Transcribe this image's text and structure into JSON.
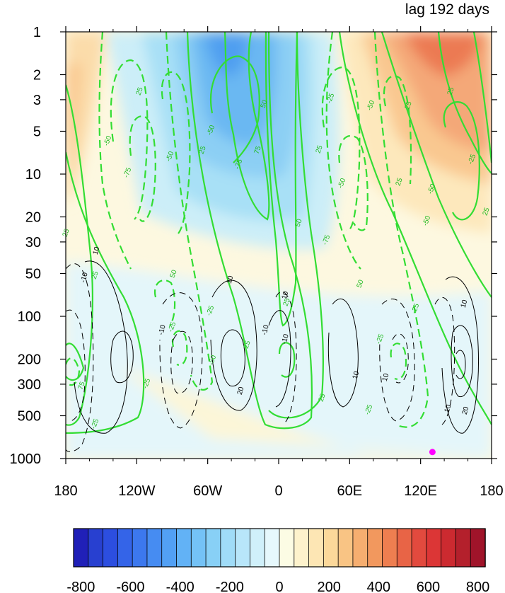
{
  "chart_data": {
    "type": "heatmap",
    "title": "lag 192 days",
    "x_tick_labels": [
      "180",
      "120W",
      "60W",
      "0",
      "60E",
      "120E",
      "180"
    ],
    "x_tick_values": [
      -180,
      -120,
      -60,
      0,
      60,
      120,
      180
    ],
    "xlim": [
      -180,
      180
    ],
    "y_tick_labels": [
      "1",
      "2",
      "3",
      "5",
      "10",
      "20",
      "30",
      "50",
      "100",
      "200",
      "300",
      "500",
      "1000"
    ],
    "y_tick_values": [
      1,
      2,
      3,
      5,
      10,
      20,
      30,
      50,
      100,
      200,
      300,
      500,
      1000
    ],
    "ylim": [
      1,
      1000
    ],
    "y_scale": "log",
    "y_reversed": true,
    "colorbar": {
      "placement": "bottom",
      "tick_labels": [
        "-800",
        "-600",
        "-400",
        "-200",
        "0",
        "200",
        "400",
        "600",
        "800"
      ],
      "tick_values": [
        -800,
        -600,
        -400,
        -200,
        0,
        200,
        400,
        600,
        800
      ],
      "levels_count": 28,
      "colors": [
        "#2020b8",
        "#2840d0",
        "#2c4ee0",
        "#3464e8",
        "#3c78ee",
        "#468cf2",
        "#52a0f4",
        "#62b2f6",
        "#74c2f6",
        "#88d0f6",
        "#a0dcf8",
        "#b8e6fa",
        "#d0f0fa",
        "#e6f8fc",
        "#fcfce4",
        "#fdf2cc",
        "#fde6b4",
        "#fcd89a",
        "#f9c484",
        "#f6ae70",
        "#f2985e",
        "#ee7e50",
        "#e86446",
        "#e24a3e",
        "#dc3636",
        "#cc2a30",
        "#b4202c",
        "#a0142a"
      ]
    },
    "shading_regions": [
      {
        "name": "warm-upper-left",
        "value": 250,
        "lon_range": [
          -180,
          -165
        ],
        "p_range": [
          1,
          50
        ]
      },
      {
        "name": "cool-upper-center",
        "value": -350,
        "lon_range": [
          -100,
          30
        ],
        "p_range": [
          1,
          50
        ]
      },
      {
        "name": "warm-upper-right",
        "value": 350,
        "lon_range": [
          80,
          180
        ],
        "p_range": [
          1,
          50
        ]
      },
      {
        "name": "near-zero-lower",
        "value": -40,
        "lon_range": [
          -180,
          180
        ],
        "p_range": [
          50,
          1000
        ]
      }
    ],
    "contour_labels_green": [
      "-50",
      "-75",
      "-50",
      "25",
      "-25",
      "-50",
      "-75",
      "-50",
      "25",
      "50",
      "75",
      "50",
      "25",
      "-50",
      "-75",
      "-25",
      "50",
      "25",
      "-50",
      "-25",
      "25",
      "-50",
      "25",
      "-25",
      "-50",
      "-25",
      "25",
      "75",
      "50",
      "25",
      "-25",
      "25",
      "25",
      "-25",
      "25",
      "-25",
      "25",
      "-25"
    ],
    "contour_labels_black": [
      "-10",
      "10",
      "-10",
      "10",
      "10",
      "-10",
      "20",
      "10",
      "10",
      "10",
      "-10",
      "10",
      "20"
    ],
    "marker": {
      "lon": 130,
      "p": 900,
      "color": "#ff00ff"
    }
  }
}
